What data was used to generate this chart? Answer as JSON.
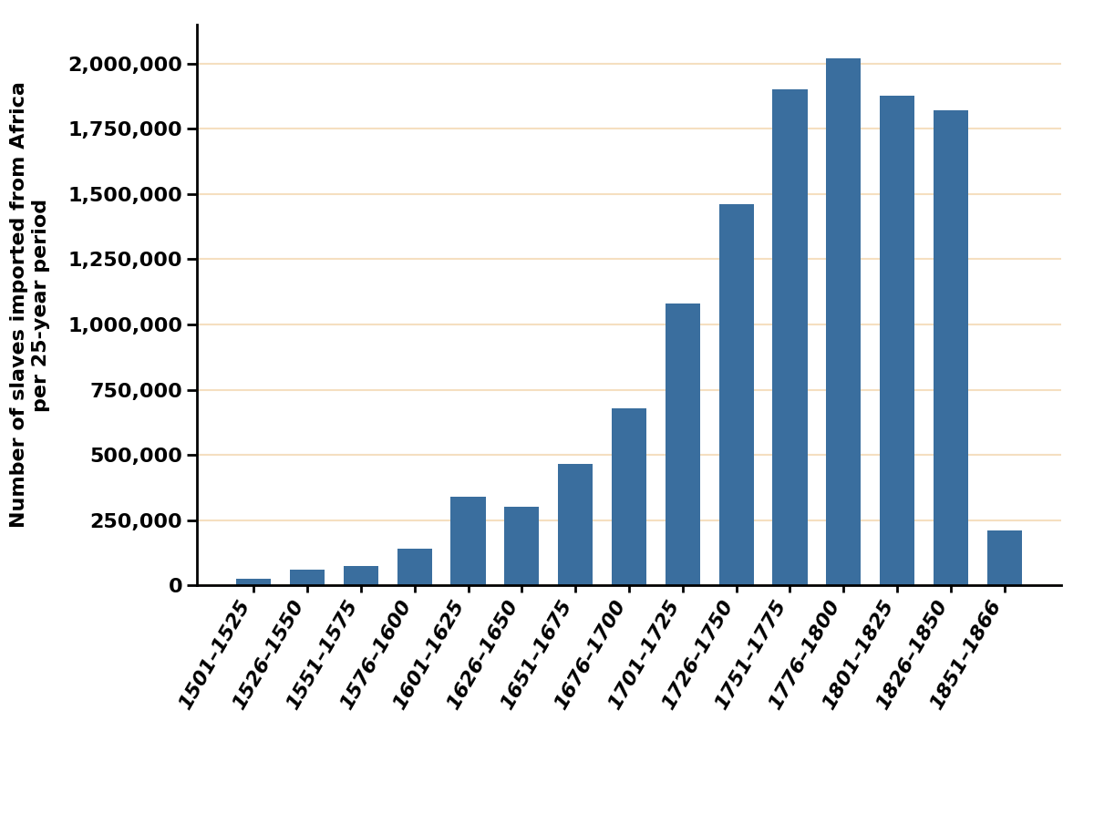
{
  "categories": [
    "1501–1525",
    "1526–1550",
    "1551–1575",
    "1576–1600",
    "1601–1625",
    "1626–1650",
    "1651–1675",
    "1676–1700",
    "1701–1725",
    "1726–1750",
    "1751–1775",
    "1776–1800",
    "1801–1825",
    "1826–1850",
    "1851–1866"
  ],
  "values": [
    25000,
    60000,
    75000,
    140000,
    340000,
    300000,
    465000,
    680000,
    1080000,
    1460000,
    1900000,
    2020000,
    1875000,
    1820000,
    210000
  ],
  "bar_color": "#3a6e9e",
  "ylabel_line1": "Number of slaves imported from Africa",
  "ylabel_line2": "per 25-year period",
  "background_color": "#ffffff",
  "grid_color": "#f5dfc0",
  "axis_color": "#000000",
  "ylim": [
    0,
    2150000
  ],
  "yticks": [
    0,
    250000,
    500000,
    750000,
    1000000,
    1250000,
    1500000,
    1750000,
    2000000
  ],
  "tick_label_fontsize": 16,
  "ylabel_fontsize": 16,
  "xlabel_fontsize": 16
}
